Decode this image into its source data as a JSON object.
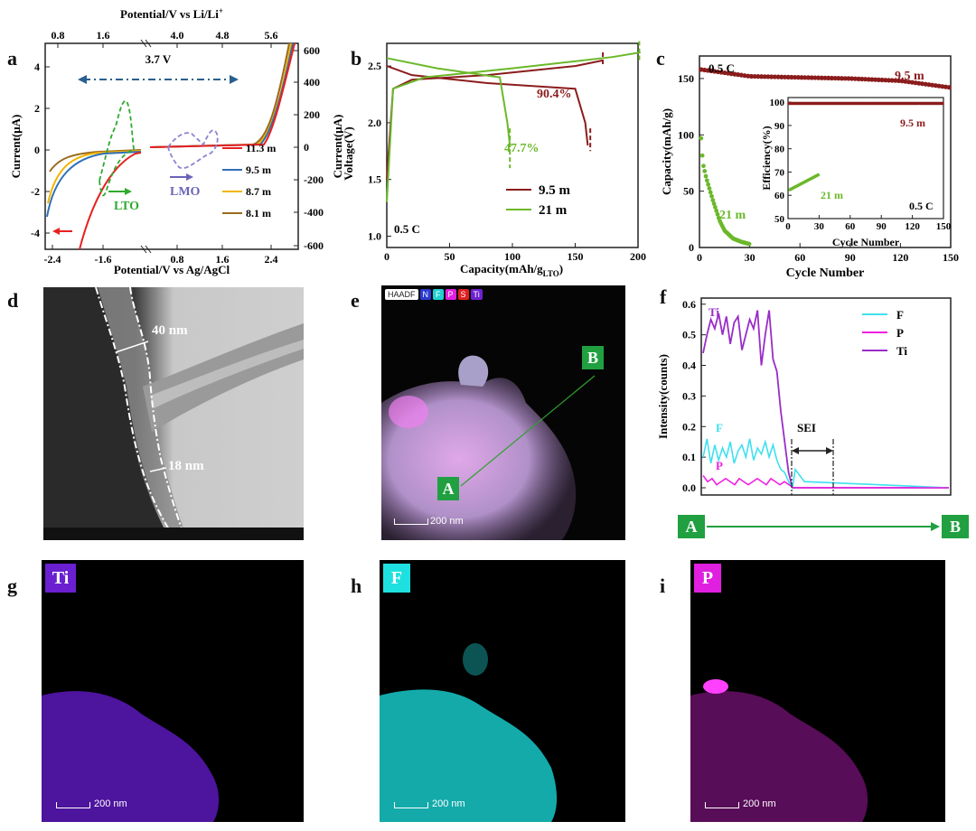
{
  "panels": {
    "a": "a",
    "b": "b",
    "c": "c",
    "d": "d",
    "e": "e",
    "f": "f",
    "g": "g",
    "h": "h",
    "i": "i"
  },
  "panel_a": {
    "top_axis_label": "Potential/V vs Li/Li",
    "top_axis_sup": "+",
    "bottom_axis_label": "Potential/V vs Ag/AgCl",
    "left_axis_label": "Current(μA)",
    "right_axis_label": "Current(μA)",
    "window_label": "3.7 V",
    "lto_label": "LTO",
    "lmo_label": "LMO",
    "top_ticks": [
      "0.8",
      "1.6",
      "4.0",
      "4.8",
      "5.6"
    ],
    "bottom_ticks": [
      "-2.4",
      "-1.6",
      "0.8",
      "1.6",
      "2.4"
    ],
    "left_ticks": [
      "4",
      "2",
      "0",
      "-2",
      "-4"
    ],
    "right_ticks": [
      "600",
      "400",
      "200",
      "0",
      "-200",
      "-400",
      "-600"
    ],
    "legend": [
      {
        "name": "11.3 m",
        "color": "#e82020"
      },
      {
        "name": "9.5 m",
        "color": "#2f6fb8"
      },
      {
        "name": "8.7 m",
        "color": "#f2b400"
      },
      {
        "name": "8.1 m",
        "color": "#9b6a1c"
      }
    ]
  },
  "panel_b": {
    "xlabel": "Capacity(mAh/g",
    "xlabel_sub": "LTO",
    "xlabel_end": ")",
    "ylabel": "Voltage(V)",
    "rate": "0.5 C",
    "annot_95": "90.4%",
    "annot_21": "47.7%",
    "xticks": [
      "0",
      "50",
      "100",
      "150",
      "200"
    ],
    "yticks": [
      "2.5",
      "2.0",
      "1.5",
      "1.0"
    ],
    "legend": [
      {
        "name": "9.5 m",
        "color": "#8b1c1c"
      },
      {
        "name": "21 m",
        "color": "#6bb82a"
      }
    ]
  },
  "panel_c": {
    "xlabel": "Cycle Number",
    "ylabel": "Capacity(mAh/g)",
    "rate": "0.5 C",
    "label_95": "9.5 m",
    "label_21": "21 m",
    "xticks": [
      "0",
      "30",
      "60",
      "90",
      "120",
      "150"
    ],
    "yticks": [
      "150",
      "100",
      "50",
      "0"
    ],
    "inset": {
      "xlabel": "Cycle Number",
      "ylabel": "Efficiency(%)",
      "label_95": "9.5 m",
      "label_21": "21 m",
      "rate": "0.5 C",
      "xticks": [
        "0",
        "30",
        "60",
        "90",
        "120",
        "150"
      ],
      "yticks": [
        "100",
        "90",
        "80",
        "70",
        "60",
        "50"
      ]
    }
  },
  "panel_d": {
    "dim1": "40 nm",
    "dim2": "18 nm"
  },
  "panel_e": {
    "legend": [
      "HAADF",
      "N",
      "F",
      "P",
      "S",
      "Ti"
    ],
    "point_a": "A",
    "point_b": "B",
    "scale": "200 nm"
  },
  "panel_f": {
    "ylabel": "Intensity(counts)",
    "yticks": [
      "0.6",
      "0.5",
      "0.4",
      "0.3",
      "0.2",
      "0.1",
      "0.0"
    ],
    "label_ti": "Ti",
    "label_f": "F",
    "label_p": "P",
    "sei": "SEI",
    "legend": [
      {
        "name": "F",
        "color": "#3fe0f0"
      },
      {
        "name": "P",
        "color": "#f020e0"
      },
      {
        "name": "Ti",
        "color": "#9a2cc8"
      }
    ],
    "point_a": "A",
    "point_b": "B"
  },
  "panel_g": {
    "element": "Ti",
    "scale": "200 nm",
    "color": "#6a1fd0"
  },
  "panel_h": {
    "element": "F",
    "scale": "200 nm",
    "color": "#1fe0e0"
  },
  "panel_i": {
    "element": "P",
    "scale": "200 nm",
    "color": "#e01fe0"
  },
  "chart_data": [
    {
      "type": "line",
      "title": "",
      "xlabel": "Capacity(mAh/gLTO)",
      "ylabel": "Voltage(V)",
      "xlim": [
        0,
        200
      ],
      "ylim": [
        0.9,
        2.7
      ],
      "series": [
        {
          "name": "9.5 m",
          "charge": [
            [
              0,
              1.5
            ],
            [
              5,
              2.3
            ],
            [
              20,
              2.38
            ],
            [
              80,
              2.42
            ],
            [
              150,
              2.5
            ],
            [
              172,
              2.55
            ]
          ],
          "discharge": [
            [
              0,
              2.5
            ],
            [
              20,
              2.42
            ],
            [
              80,
              2.35
            ],
            [
              150,
              2.3
            ],
            [
              158,
              2.0
            ],
            [
              160,
              1.8
            ]
          ]
        },
        {
          "name": "21 m",
          "charge": [
            [
              0,
              1.3
            ],
            [
              5,
              2.3
            ],
            [
              30,
              2.4
            ],
            [
              100,
              2.48
            ],
            [
              180,
              2.58
            ],
            [
              202,
              2.62
            ]
          ],
          "discharge": [
            [
              0,
              2.57
            ],
            [
              40,
              2.48
            ],
            [
              90,
              2.4
            ],
            [
              96,
              2.0
            ],
            [
              98,
              1.8
            ]
          ]
        }
      ]
    },
    {
      "type": "scatter",
      "title": "",
      "xlabel": "Cycle Number",
      "ylabel": "Capacity(mAh/g)",
      "xlim": [
        0,
        150
      ],
      "ylim": [
        0,
        170
      ],
      "series": [
        {
          "name": "9.5 m",
          "x": [
            1,
            30,
            60,
            90,
            120,
            150
          ],
          "y": [
            158,
            152,
            151,
            150,
            148,
            142
          ]
        },
        {
          "name": "21 m",
          "x": [
            1,
            2,
            4,
            6,
            8,
            10,
            12,
            15,
            20,
            25,
            30
          ],
          "y": [
            97,
            75,
            62,
            52,
            42,
            33,
            24,
            15,
            8,
            5,
            3
          ]
        }
      ]
    }
  ]
}
